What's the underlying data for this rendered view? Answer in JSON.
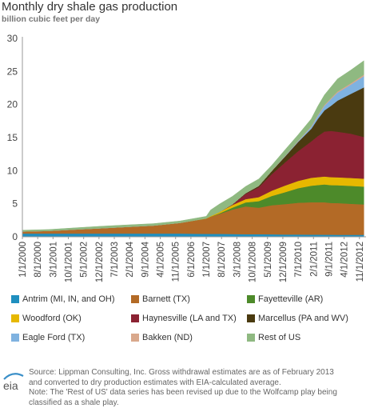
{
  "header": {
    "title": "Monthly dry shale gas production",
    "subtitle": "billion cubic feet per day"
  },
  "footer": {
    "source_line1": "Source: Lippman Consulting, Inc. Gross withdrawal estimates are as of February 2013",
    "source_line2": "and converted to dry production estimates with EIA-calculated average.",
    "note_line1": "Note: The 'Rest of US' data series has been revised up due to the Wolfcamp play being",
    "note_line2": "classified as a shale play.",
    "logo_text": "eia"
  },
  "chart_data": {
    "type": "area",
    "stacked": true,
    "title": "Monthly dry shale gas production",
    "ylabel": "billion cubic feet per day",
    "xlabel": "",
    "ylim": [
      0,
      30
    ],
    "yticks": [
      0,
      5,
      10,
      15,
      20,
      25,
      30
    ],
    "grid": false,
    "x_tick_labels": [
      "1/1/2000",
      "8/1/2000",
      "3/1/2001",
      "10/1/2001",
      "5/1/2002",
      "12/1/2002",
      "7/1/2003",
      "2/1/2004",
      "9/1/2004",
      "4/1/2005",
      "11/1/2005",
      "6/1/2006",
      "1/1/2007",
      "8/1/2007",
      "3/1/2008",
      "10/1/2008",
      "5/1/2009",
      "12/1/2009",
      "7/1/2010",
      "2/1/2011",
      "9/1/2011",
      "4/1/2012",
      "11/1/2012"
    ],
    "x_months": [
      0,
      12,
      24,
      36,
      48,
      60,
      72,
      84,
      86,
      90,
      96,
      102,
      108,
      114,
      120,
      126,
      132,
      135,
      138,
      141,
      144,
      150,
      156
    ],
    "series": [
      {
        "name": "Antrim (MI, IN, and OH)",
        "color": "#1f8fbf",
        "values": [
          0.5,
          0.5,
          0.5,
          0.5,
          0.5,
          0.5,
          0.5,
          0.45,
          0.45,
          0.45,
          0.42,
          0.4,
          0.4,
          0.38,
          0.35,
          0.35,
          0.33,
          0.33,
          0.32,
          0.32,
          0.3,
          0.3,
          0.3
        ]
      },
      {
        "name": "Barnett (TX)",
        "color": "#b36a26",
        "values": [
          0.3,
          0.4,
          0.6,
          0.8,
          1.0,
          1.2,
          1.6,
          2.3,
          2.6,
          3.0,
          3.7,
          4.2,
          4.0,
          4.4,
          4.6,
          4.8,
          4.9,
          4.9,
          4.9,
          4.8,
          4.8,
          4.7,
          4.6
        ]
      },
      {
        "name": "Fayetteville (AR)",
        "color": "#4d8a2a",
        "values": [
          0,
          0,
          0,
          0,
          0,
          0,
          0,
          0,
          0,
          0.1,
          0.3,
          0.6,
          1.0,
          1.4,
          1.8,
          2.2,
          2.5,
          2.6,
          2.7,
          2.7,
          2.7,
          2.7,
          2.7
        ]
      },
      {
        "name": "Woodford (OK)",
        "color": "#e6b800",
        "values": [
          0,
          0,
          0,
          0,
          0,
          0,
          0,
          0.05,
          0.1,
          0.2,
          0.4,
          0.5,
          0.6,
          0.8,
          1.0,
          1.1,
          1.2,
          1.2,
          1.2,
          1.2,
          1.2,
          1.2,
          1.2
        ]
      },
      {
        "name": "Haynesville (LA and TX)",
        "color": "#8b2232",
        "values": [
          0,
          0,
          0,
          0,
          0,
          0,
          0,
          0,
          0,
          0,
          0.05,
          0.8,
          1.5,
          2.5,
          3.5,
          4.5,
          5.5,
          6.2,
          6.8,
          7.0,
          6.9,
          6.7,
          6.3
        ]
      },
      {
        "name": "Marcellus (PA and WV)",
        "color": "#4a3a10",
        "values": [
          0,
          0,
          0,
          0,
          0,
          0,
          0,
          0,
          0,
          0,
          0.05,
          0.1,
          0.2,
          0.5,
          0.9,
          1.4,
          1.9,
          2.6,
          3.2,
          3.8,
          4.7,
          6.0,
          7.5
        ]
      },
      {
        "name": "Eagle Ford (TX)",
        "color": "#7fb2e0",
        "values": [
          0,
          0,
          0,
          0,
          0,
          0,
          0,
          0,
          0,
          0,
          0,
          0,
          0,
          0,
          0.05,
          0.1,
          0.3,
          0.5,
          0.7,
          1.0,
          1.2,
          1.4,
          1.7
        ]
      },
      {
        "name": "Bakken (ND)",
        "color": "#d9a88c",
        "values": [
          0,
          0,
          0,
          0,
          0,
          0,
          0,
          0,
          0,
          0,
          0,
          0.02,
          0.04,
          0.05,
          0.06,
          0.08,
          0.1,
          0.12,
          0.14,
          0.15,
          0.18,
          0.2,
          0.22
        ]
      },
      {
        "name": "Rest of US",
        "color": "#8fb981",
        "values": [
          0.2,
          0.2,
          0.25,
          0.3,
          0.3,
          0.3,
          0.3,
          0.3,
          0.9,
          1.2,
          1.2,
          1.0,
          1.0,
          0.8,
          0.9,
          0.9,
          1.1,
          1.3,
          1.5,
          1.7,
          1.9,
          2.0,
          2.1
        ]
      }
    ]
  }
}
